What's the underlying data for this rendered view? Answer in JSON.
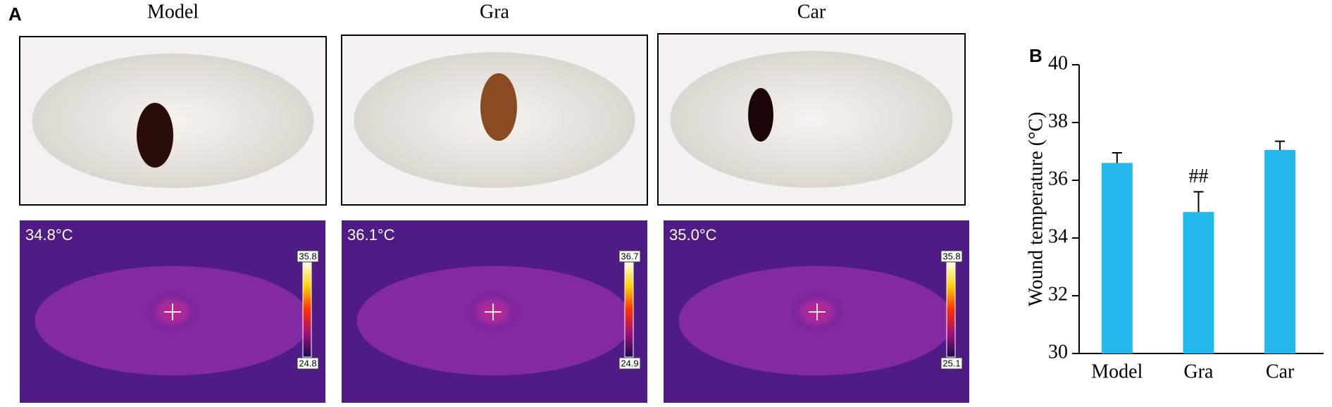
{
  "panel_a": {
    "label": "A",
    "columns": [
      {
        "title": "Model",
        "thermal": {
          "temperature": "34.8°C",
          "scale_max": 35.8,
          "scale_min": 24.8
        }
      },
      {
        "title": "Gra",
        "thermal": {
          "temperature": "36.1°C",
          "scale_max": 36.7,
          "scale_min": 24.9
        }
      },
      {
        "title": "Car",
        "thermal": {
          "temperature": "35.0°C",
          "scale_max": 35.8,
          "scale_min": 25.1
        }
      }
    ]
  },
  "panel_b": {
    "label": "B"
  },
  "chart_data": {
    "type": "bar",
    "y_label": "Wound temperature (°C)",
    "categories": [
      "Model",
      "Gra",
      "Car"
    ],
    "values": [
      36.6,
      34.9,
      37.05
    ],
    "errors": [
      0.35,
      0.7,
      0.3
    ],
    "color": "#22b8ec",
    "ylim": [
      30,
      40
    ],
    "yticks": [
      30,
      32,
      34,
      36,
      38,
      40
    ],
    "annotations": [
      {
        "category": "Gra",
        "text": "##"
      }
    ]
  }
}
